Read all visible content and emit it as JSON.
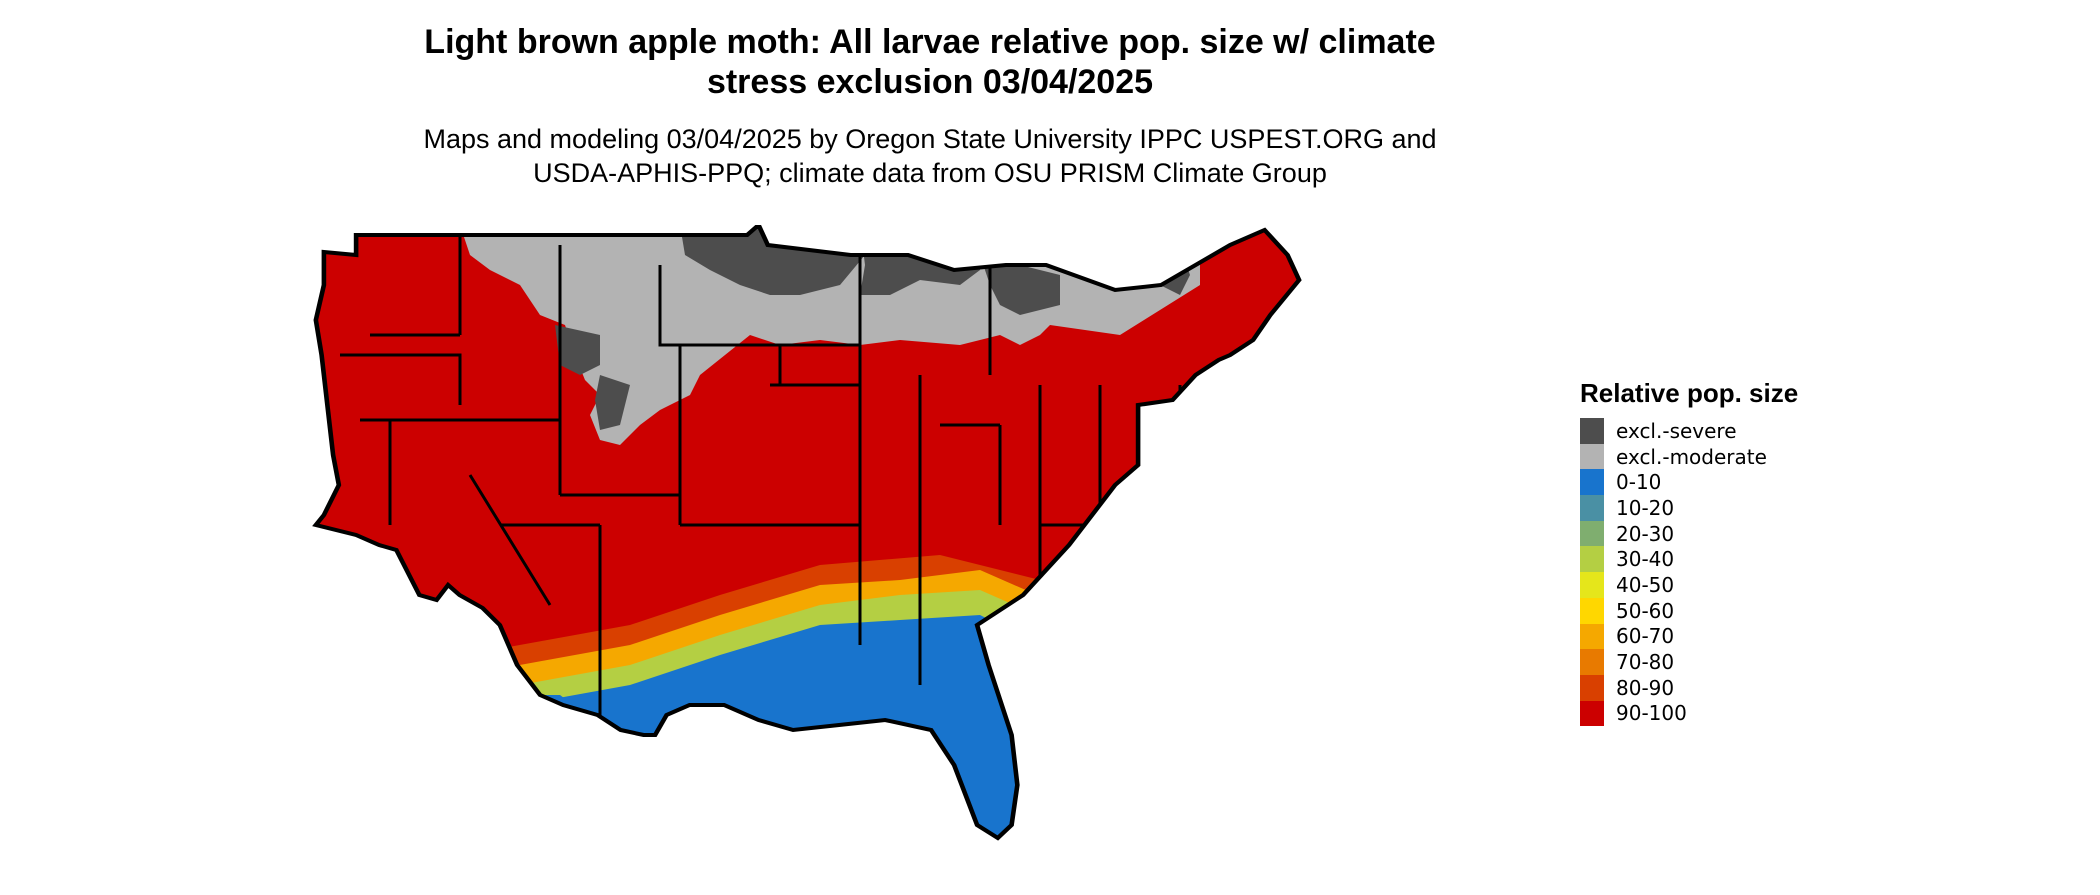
{
  "title": {
    "line1": "Light brown apple moth: All larvae relative pop. size w/ climate",
    "line2": "stress exclusion 03/04/2025"
  },
  "subtitle": {
    "line1": "Maps and modeling 03/04/2025 by Oregon State University IPPC USPEST.ORG and",
    "line2": "USDA-APHIS-PPQ; climate data from OSU PRISM Climate Group"
  },
  "legend": {
    "title": "Relative pop. size",
    "items": [
      {
        "label": "excl.-severe",
        "color": "#4d4d4d"
      },
      {
        "label": "excl.-moderate",
        "color": "#b3b3b3"
      },
      {
        "label": "0-10",
        "color": "#1874cd"
      },
      {
        "label": "10-20",
        "color": "#4a90a4"
      },
      {
        "label": "20-30",
        "color": "#7fae6f"
      },
      {
        "label": "30-40",
        "color": "#b4cf43"
      },
      {
        "label": "40-50",
        "color": "#e5e61b"
      },
      {
        "label": "50-60",
        "color": "#ffd700"
      },
      {
        "label": "60-70",
        "color": "#f5a800"
      },
      {
        "label": "70-80",
        "color": "#e87a00"
      },
      {
        "label": "80-90",
        "color": "#d94000"
      },
      {
        "label": "90-100",
        "color": "#cc0000"
      }
    ]
  },
  "map": {
    "region": "Contiguous United States",
    "outline_color": "#000000"
  }
}
